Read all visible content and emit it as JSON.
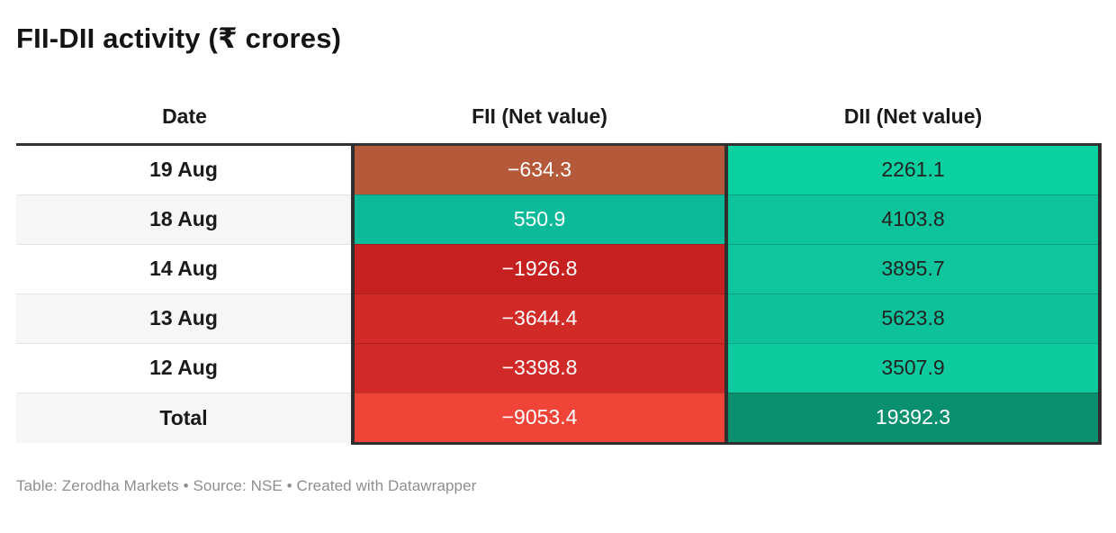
{
  "title": "FII-DII activity (₹ crores)",
  "footer": "Table: Zerodha Markets • Source: NSE • Created with Datawrapper",
  "table": {
    "columns": [
      "Date",
      "FII (Net value)",
      "DII (Net value)"
    ],
    "rows": [
      {
        "date": "19 Aug",
        "fii": "−634.3",
        "dii": "2261.1",
        "fii_bg": "#b45a3b",
        "fii_fg": "#ffffff",
        "dii_bg": "#0bd0a0",
        "dii_fg": "#222222"
      },
      {
        "date": "18 Aug",
        "fii": "550.9",
        "dii": "4103.8",
        "fii_bg": "#0cb998",
        "fii_fg": "#ffffff",
        "dii_bg": "#0dc39b",
        "dii_fg": "#222222"
      },
      {
        "date": "14 Aug",
        "fii": "−1926.8",
        "dii": "3895.7",
        "fii_bg": "#c62021",
        "fii_fg": "#ffffff",
        "dii_bg": "#0ec59d",
        "dii_fg": "#222222"
      },
      {
        "date": "13 Aug",
        "fii": "−3644.4",
        "dii": "5623.8",
        "fii_bg": "#d22a27",
        "fii_fg": "#ffffff",
        "dii_bg": "#0dc29a",
        "dii_fg": "#222222"
      },
      {
        "date": "12 Aug",
        "fii": "−3398.8",
        "dii": "3507.9",
        "fii_bg": "#d12927",
        "fii_fg": "#ffffff",
        "dii_bg": "#0ecb9f",
        "dii_fg": "#222222"
      },
      {
        "date": "Total",
        "fii": "−9053.4",
        "dii": "19392.3",
        "fii_bg": "#ef4437",
        "fii_fg": "#ffffff",
        "dii_bg": "#0a8f6f",
        "dii_fg": "#ffffff"
      }
    ]
  },
  "colors": {
    "header_border": "#333333",
    "column_border": "#2f2f2f",
    "alt_row_bg": "#f6f6f6",
    "footer_text": "#8e8e8e",
    "title_text": "#141414"
  },
  "chart_data": {
    "type": "table",
    "title": "FII-DII activity (₹ crores)",
    "columns": [
      "Date",
      "FII (Net value)",
      "DII (Net value)"
    ],
    "rows": [
      [
        "19 Aug",
        -634.3,
        2261.1
      ],
      [
        "18 Aug",
        550.9,
        4103.8
      ],
      [
        "14 Aug",
        -1926.8,
        3895.7
      ],
      [
        "13 Aug",
        -3644.4,
        5623.8
      ],
      [
        "12 Aug",
        -3398.8,
        3507.9
      ],
      [
        "Total",
        -9053.4,
        19392.3
      ]
    ],
    "byline": "Zerodha Markets",
    "source": "NSE",
    "tool": "Datawrapper",
    "notes": "Negative FII cells shaded red/brown, positive cells shaded green; darker green for larger DII totals"
  }
}
